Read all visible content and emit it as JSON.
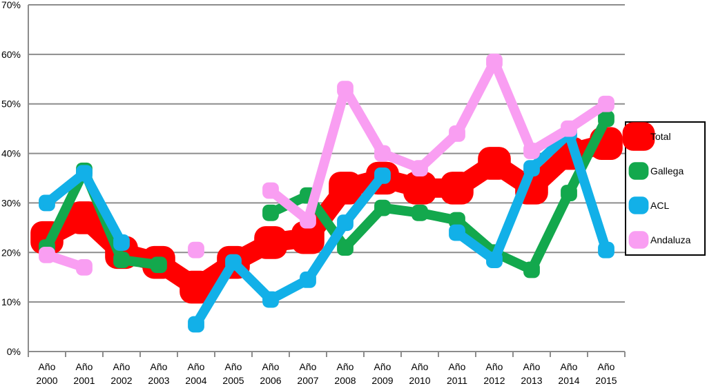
{
  "chart_data": {
    "type": "line",
    "title": "",
    "xlabel": "",
    "ylabel": "",
    "ylim": [
      0,
      70
    ],
    "y_ticks": [
      "0%",
      "10%",
      "20%",
      "30%",
      "40%",
      "50%",
      "60%",
      "70%"
    ],
    "grid": true,
    "legend_placement": "right",
    "categories": [
      "Año 2000",
      "Año 2001",
      "Año 2002",
      "Año 2003",
      "Año 2004",
      "Año 2005",
      "Año 2006",
      "Año 2007",
      "Año 2008",
      "Año 2009",
      "Año 2010",
      "Año 2011",
      "Año 2012",
      "Año 2013",
      "Año 2014",
      "Año 2015"
    ],
    "series": [
      {
        "name": "Total",
        "color": "#ff0000",
        "values": [
          23,
          27,
          20,
          18,
          13,
          18,
          22,
          23,
          33,
          35,
          33,
          33,
          38,
          33,
          40,
          42
        ]
      },
      {
        "name": "Gallega",
        "color": "#13a84d",
        "values": [
          21,
          36.5,
          18.5,
          17.5,
          null,
          null,
          28,
          31.5,
          21,
          29,
          28,
          26.5,
          20,
          16.5,
          32,
          47
        ]
      },
      {
        "name": "ACL",
        "color": "#12b0e8",
        "values": [
          30,
          36,
          22,
          null,
          5.5,
          18,
          10.5,
          14.5,
          26,
          35.5,
          null,
          24,
          18.5,
          37,
          44,
          20.5
        ]
      },
      {
        "name": "Andaluza",
        "color": "#f99ef2",
        "values": [
          19.5,
          17,
          null,
          null,
          20.5,
          null,
          32.5,
          26.5,
          53,
          40,
          37,
          44,
          58.5,
          40.5,
          45,
          50
        ]
      }
    ]
  }
}
